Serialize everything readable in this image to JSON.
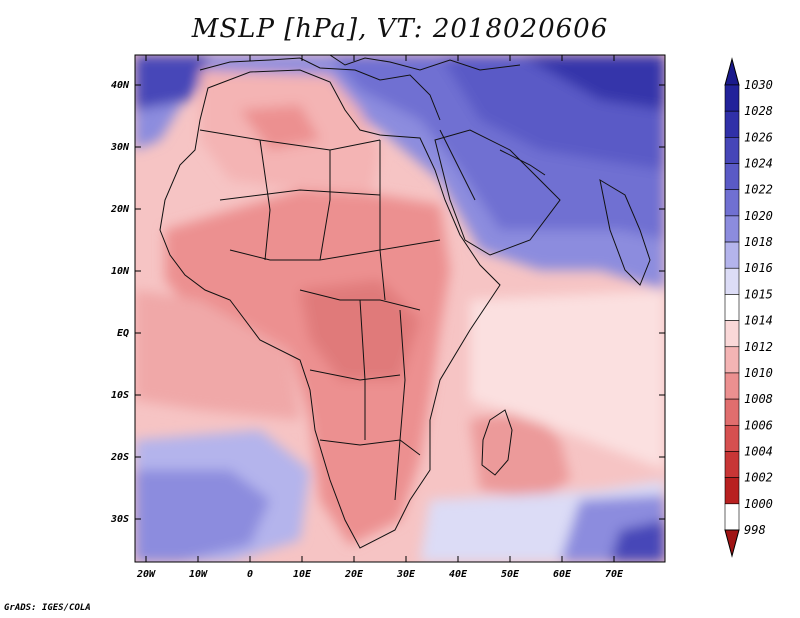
{
  "title": "MSLP [hPa], VT: 2018020606",
  "credit": "GrADS: IGES/COLA",
  "map": {
    "lat_labels": [
      "40N",
      "30N",
      "20N",
      "10N",
      "EQ",
      "10S",
      "20S",
      "30S"
    ],
    "lon_labels": [
      "20W",
      "10W",
      "0",
      "10E",
      "20E",
      "30E",
      "40E",
      "50E",
      "60E",
      "70E"
    ]
  },
  "colorbar": {
    "levels": [
      "1030",
      "1028",
      "1026",
      "1024",
      "1022",
      "1020",
      "1018",
      "1016",
      "1015",
      "1014",
      "1012",
      "1010",
      "1008",
      "1006",
      "1004",
      "1002",
      "1000",
      "998"
    ],
    "colors": {
      "over": "#1a1a8c",
      "1028": "#22229a",
      "1026": "#3030a8",
      "1024": "#4646b8",
      "1022": "#5a5ac6",
      "1020": "#7070d2",
      "1018": "#8c8cde",
      "1016": "#b4b4ec",
      "1015": "#dcdcf6",
      "1014": "#ffffff",
      "1012": "#fad8d8",
      "1010": "#f4b4b4",
      "1008": "#ec9090",
      "1006": "#e06e6e",
      "1004": "#d65050",
      "1002": "#c83636",
      "1000": "#b82020",
      "under": "#a01414"
    }
  },
  "colors": {
    "ocean_south": "#fad6d6",
    "continent_low": "#e89090",
    "north_high": "#6c6cd0",
    "far_north": "#2a2aa0"
  }
}
